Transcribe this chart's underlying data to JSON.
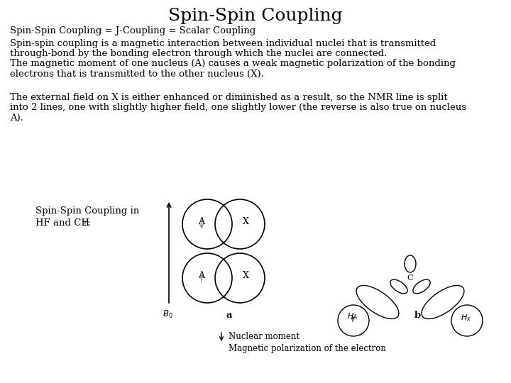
{
  "title": "Spin-Spin Coupling",
  "title_fontsize": 18,
  "background_color": "#ffffff",
  "line1": "Spin-Spin Coupling = J-Coupling = Scalar Coupling",
  "para1_l1": "Spin-spin coupling is a magnetic interaction between individual nuclei that is transmitted",
  "para1_l2": "through-bond by the bonding electron through which the nuclei are connected.",
  "para1_l3": "The magnetic moment of one nucleus (A) causes a weak magnetic polarization of the bonding",
  "para1_l4": "electrons that is transmitted to the other nucleus (X).",
  "para2_l1": "The external field on X is either enhanced or diminished as a result, so the NMR line is split",
  "para2_l2": "into 2 lines, one with slightly higher field, one slightly lower (the reverse is also true on nucleus",
  "para2_l3": "A).",
  "label_left1": "Spin-Spin Coupling in",
  "label_left2": "HF and CH",
  "label_a": "a",
  "label_b": "b",
  "label_nuclear": "Nuclear moment",
  "label_magnetic": "Magnetic polarization of the electron",
  "text_fontsize": 9.5,
  "small_fontsize": 8.5
}
